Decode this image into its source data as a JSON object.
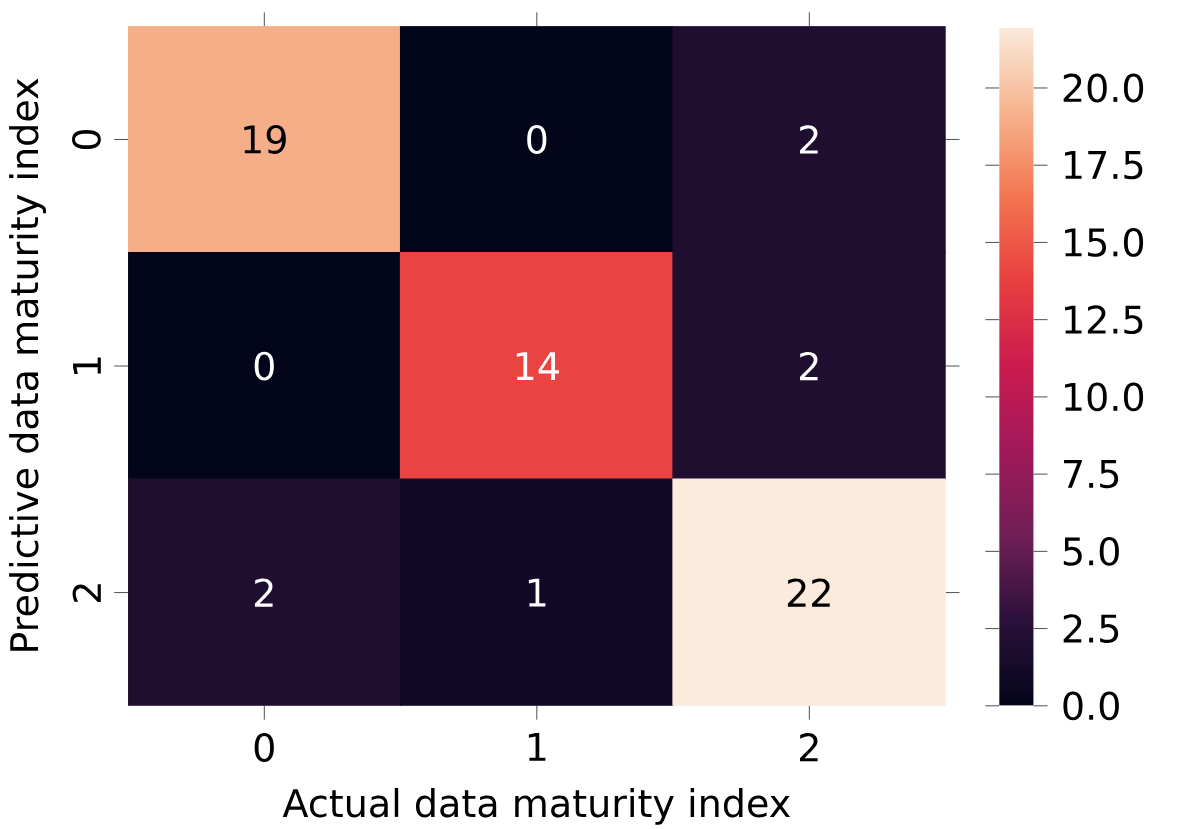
{
  "chart_data": {
    "type": "heatmap",
    "xlabel": "Actual data maturity index",
    "ylabel": "Predictive data maturity index",
    "categories": [
      "0",
      "1",
      "2"
    ],
    "y_categories": [
      "0",
      "1",
      "2"
    ],
    "cells": [
      [
        19,
        0,
        2
      ],
      [
        0,
        14,
        2
      ],
      [
        2,
        1,
        22
      ]
    ],
    "data_labels": true,
    "clim": [
      0,
      22
    ],
    "cticks": [
      {
        "value": 0,
        "label": "0.0"
      },
      {
        "value": 2.5,
        "label": "2.5"
      },
      {
        "value": 5,
        "label": "5.0"
      },
      {
        "value": 7.5,
        "label": "7.5"
      },
      {
        "value": 10,
        "label": "10.0"
      },
      {
        "value": 12.5,
        "label": "12.5"
      },
      {
        "value": 15,
        "label": "15.0"
      },
      {
        "value": 17.5,
        "label": "17.5"
      },
      {
        "value": 20,
        "label": "20.0"
      }
    ]
  }
}
